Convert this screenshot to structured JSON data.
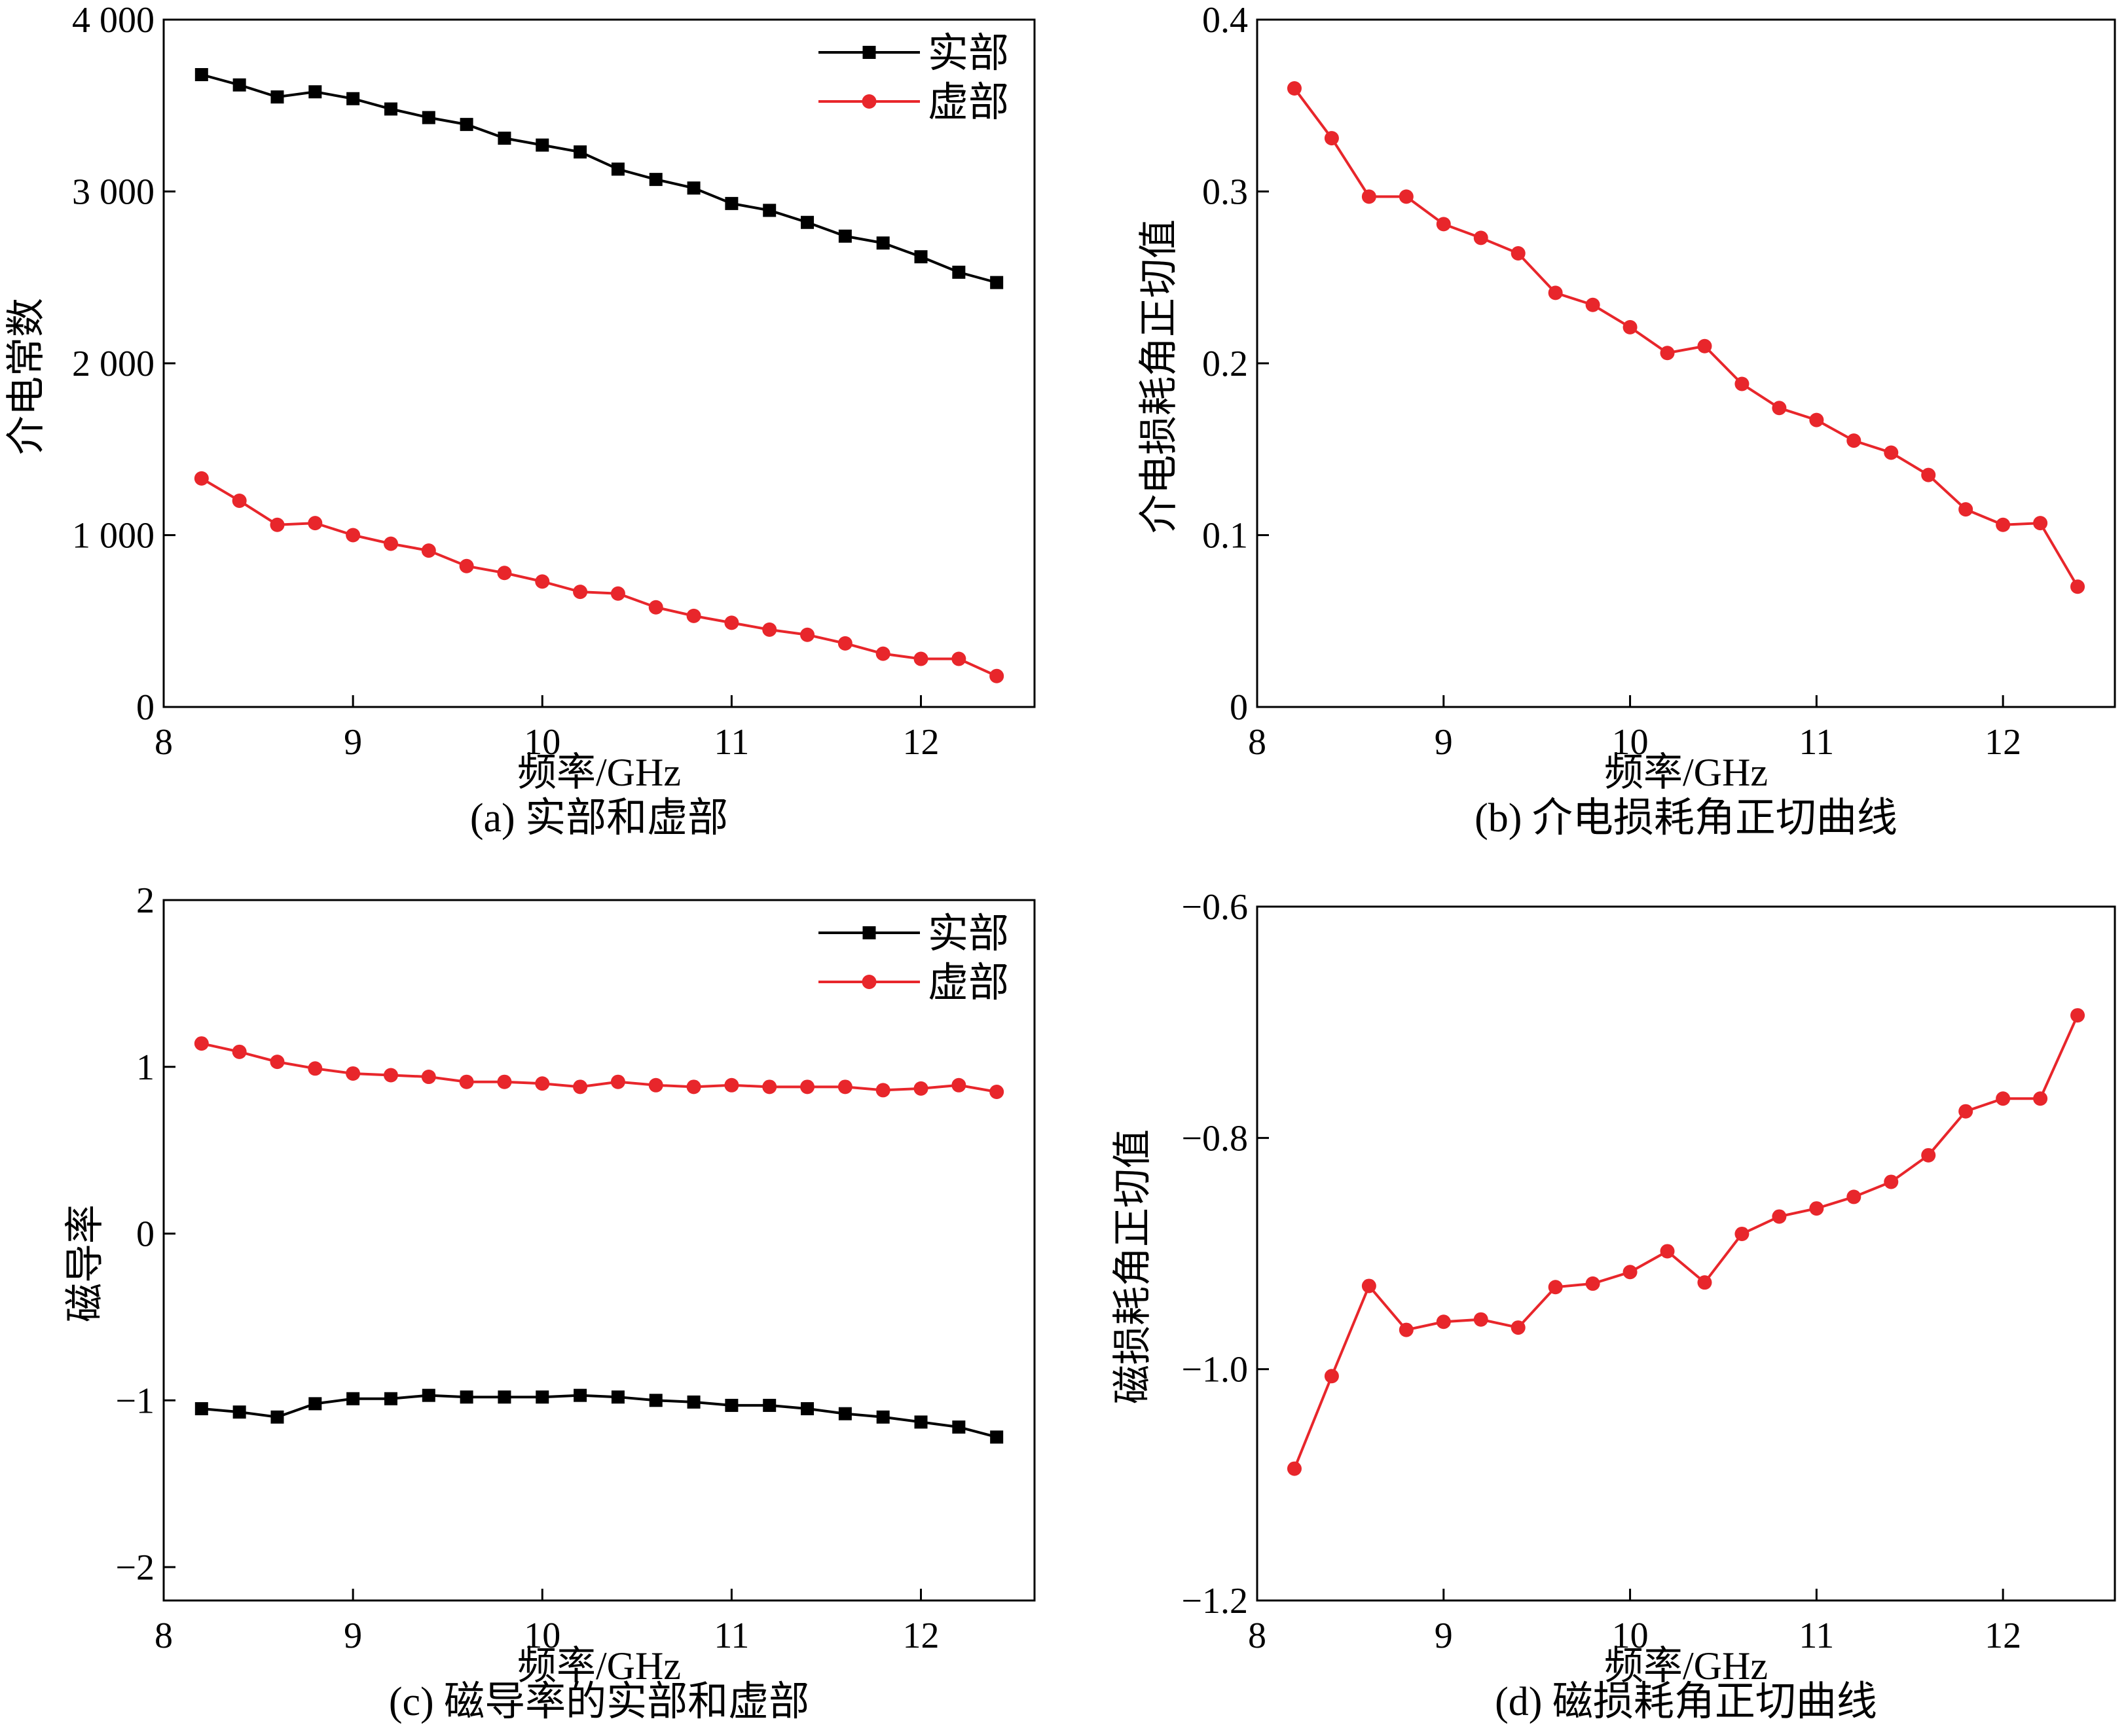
{
  "x_common": [
    8.2,
    8.4,
    8.6,
    8.8,
    9.0,
    9.2,
    9.4,
    9.6,
    9.8,
    10.0,
    10.2,
    10.4,
    10.6,
    10.8,
    11.0,
    11.2,
    11.4,
    11.6,
    11.8,
    12.0,
    12.2,
    12.4
  ],
  "colors": {
    "real": "#000000",
    "imag": "#e8262b"
  },
  "chart_data": [
    {
      "id": "a",
      "type": "line",
      "caption": "(a) 实部和虚部",
      "xlabel": "频率/GHz",
      "ylabel": "介电常数",
      "xlim": [
        8,
        12.6
      ],
      "ylim": [
        0,
        4000
      ],
      "xticks": [
        8,
        9,
        10,
        11,
        12
      ],
      "xtick_labels": [
        "8",
        "9",
        "10",
        "11",
        "12"
      ],
      "yticks": [
        0,
        1000,
        2000,
        3000,
        4000
      ],
      "ytick_labels": [
        "0",
        "1 000",
        "2 000",
        "3 000",
        "4 000"
      ],
      "grid": false,
      "legend": "top-right",
      "series": [
        {
          "name": "实部",
          "marker": "square",
          "color": "#000000",
          "values": [
            3680,
            3620,
            3550,
            3580,
            3540,
            3480,
            3430,
            3390,
            3310,
            3270,
            3230,
            3130,
            3070,
            3020,
            2930,
            2890,
            2820,
            2740,
            2700,
            2620,
            2530,
            2470
          ]
        },
        {
          "name": "虚部",
          "marker": "circle",
          "color": "#e8262b",
          "values": [
            1330,
            1200,
            1060,
            1070,
            1000,
            950,
            910,
            820,
            780,
            730,
            670,
            660,
            580,
            530,
            490,
            450,
            420,
            370,
            310,
            280,
            280,
            180
          ]
        }
      ]
    },
    {
      "id": "b",
      "type": "line",
      "caption": "(b) 介电损耗角正切曲线",
      "xlabel": "频率/GHz",
      "ylabel": "介电损耗角正切值",
      "xlim": [
        8,
        12.6
      ],
      "ylim": [
        0,
        0.4
      ],
      "xticks": [
        8,
        9,
        10,
        11,
        12
      ],
      "xtick_labels": [
        "8",
        "9",
        "10",
        "11",
        "12"
      ],
      "yticks": [
        0,
        0.1,
        0.2,
        0.3,
        0.4
      ],
      "ytick_labels": [
        "0",
        "0.1",
        "0.2",
        "0.3",
        "0.4"
      ],
      "grid": false,
      "series": [
        {
          "marker": "circle",
          "color": "#e8262b",
          "values": [
            0.36,
            0.331,
            0.297,
            0.297,
            0.281,
            0.273,
            0.264,
            0.241,
            0.234,
            0.221,
            0.206,
            0.21,
            0.188,
            0.174,
            0.167,
            0.155,
            0.148,
            0.135,
            0.115,
            0.106,
            0.107,
            0.07
          ]
        }
      ]
    },
    {
      "id": "c",
      "type": "line",
      "caption": "(c) 磁导率的实部和虚部",
      "xlabel": "频率/GHz",
      "ylabel": "磁导率",
      "xlim": [
        8,
        12.6
      ],
      "ylim": [
        -2.2,
        2
      ],
      "xticks": [
        8,
        9,
        10,
        11,
        12
      ],
      "xtick_labels": [
        "8",
        "9",
        "10",
        "11",
        "12"
      ],
      "yticks": [
        -2,
        -1,
        0,
        1,
        2
      ],
      "ytick_labels": [
        "−2",
        "−1",
        "0",
        "1",
        "2"
      ],
      "grid": false,
      "legend": "top-right",
      "series": [
        {
          "name": "实部",
          "marker": "square",
          "color": "#000000",
          "values": [
            -1.05,
            -1.07,
            -1.1,
            -1.02,
            -0.99,
            -0.99,
            -0.97,
            -0.98,
            -0.98,
            -0.98,
            -0.97,
            -0.98,
            -1.0,
            -1.01,
            -1.03,
            -1.03,
            -1.05,
            -1.08,
            -1.1,
            -1.13,
            -1.16,
            -1.22
          ]
        },
        {
          "name": "虚部",
          "marker": "circle",
          "color": "#e8262b",
          "values": [
            1.14,
            1.09,
            1.03,
            0.99,
            0.96,
            0.95,
            0.94,
            0.91,
            0.91,
            0.9,
            0.88,
            0.91,
            0.89,
            0.88,
            0.89,
            0.88,
            0.88,
            0.88,
            0.86,
            0.87,
            0.89,
            0.85
          ]
        }
      ]
    },
    {
      "id": "d",
      "type": "line",
      "caption": "(d) 磁损耗角正切曲线",
      "xlabel": "频率/GHz",
      "ylabel": "磁损耗角正切值",
      "xlim": [
        8,
        12.6
      ],
      "ylim": [
        -1.2,
        -0.6
      ],
      "xticks": [
        8,
        9,
        10,
        11,
        12
      ],
      "xtick_labels": [
        "8",
        "9",
        "10",
        "11",
        "12"
      ],
      "yticks": [
        -1.2,
        -1.0,
        -0.8,
        -0.6
      ],
      "ytick_labels": [
        "−1.2",
        "−1.0",
        "−0.8",
        "−0.6"
      ],
      "grid": false,
      "series": [
        {
          "marker": "circle",
          "color": "#e8262b",
          "values": [
            -1.086,
            -1.006,
            -0.928,
            -0.966,
            -0.959,
            -0.957,
            -0.964,
            -0.929,
            -0.926,
            -0.916,
            -0.898,
            -0.925,
            -0.883,
            -0.868,
            -0.861,
            -0.851,
            -0.838,
            -0.815,
            -0.777,
            -0.766,
            -0.766,
            -0.694
          ]
        }
      ]
    }
  ]
}
